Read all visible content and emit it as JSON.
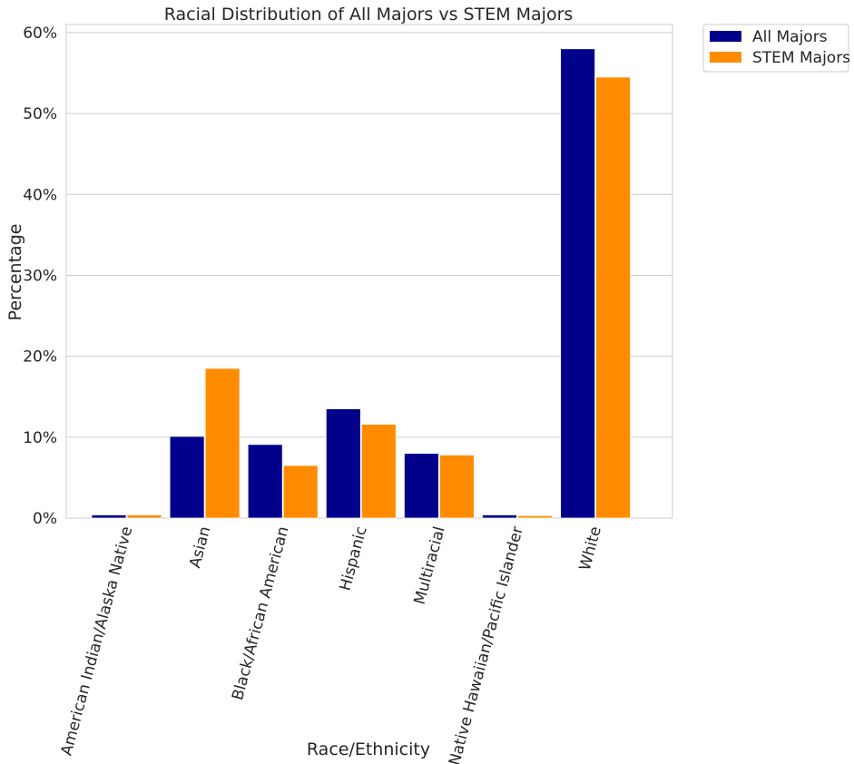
{
  "chart_data": {
    "type": "bar",
    "title": "Racial Distribution of All Majors vs STEM Majors",
    "xlabel": "Race/Ethnicity",
    "ylabel": "Percentage",
    "categories": [
      "American Indian/Alaska Native",
      "Asian",
      "Black/African American",
      "Hispanic",
      "Multiracial",
      "Native Hawaiian/Pacific Islander",
      "White"
    ],
    "series": [
      {
        "name": "All Majors",
        "color": "#00008B",
        "values": [
          0.4,
          10.1,
          9.1,
          13.5,
          8.0,
          0.4,
          58.0
        ]
      },
      {
        "name": "STEM Majors",
        "color": "#FF8C00",
        "values": [
          0.4,
          18.5,
          6.5,
          11.6,
          7.8,
          0.3,
          54.5
        ]
      }
    ],
    "ylim": [
      0,
      61
    ],
    "yticks": [
      0,
      10,
      20,
      30,
      40,
      50,
      60
    ],
    "ytick_labels": [
      "0%",
      "10%",
      "20%",
      "30%",
      "40%",
      "50%",
      "60%"
    ],
    "grid": "horizontal",
    "legend": "outside upper right"
  }
}
